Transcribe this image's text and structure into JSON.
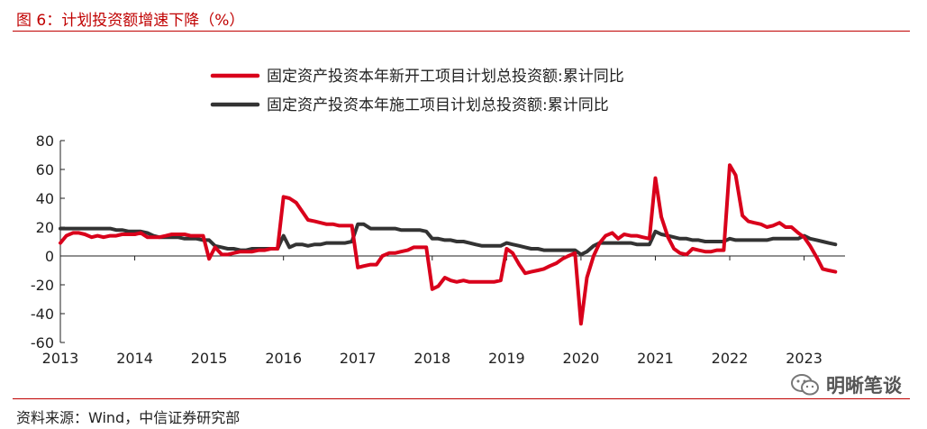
{
  "figure": {
    "title": "图 6：计划投资额增速下降（%）",
    "source": "资料来源：Wind，中信证券研究部",
    "watermark": "明晰笔谈",
    "watermark_icon": "wechat-icon"
  },
  "chart_data": {
    "type": "line",
    "title": "",
    "xlabel": "",
    "ylabel": "",
    "ylim": [
      -60,
      80
    ],
    "yticks": [
      80,
      60,
      40,
      20,
      0,
      -20,
      -40,
      -60
    ],
    "xticks": [
      "2013",
      "2014",
      "2015",
      "2016",
      "2017",
      "2018",
      "2019",
      "2020",
      "2021",
      "2022",
      "2023"
    ],
    "grid": false,
    "legend_position": "top",
    "colors": {
      "new_projects": "#d9001b",
      "under_construction": "#333333"
    },
    "series": [
      {
        "name": "固定资产投资本年新开工项目计划总投资额:累计同比",
        "color": "#d9001b",
        "x": [
          2013.0,
          2013.08,
          2013.17,
          2013.25,
          2013.33,
          2013.42,
          2013.5,
          2013.58,
          2013.67,
          2013.75,
          2013.83,
          2013.92,
          2014.0,
          2014.08,
          2014.17,
          2014.25,
          2014.33,
          2014.42,
          2014.5,
          2014.58,
          2014.67,
          2014.75,
          2014.83,
          2014.92,
          2015.0,
          2015.08,
          2015.17,
          2015.25,
          2015.33,
          2015.42,
          2015.5,
          2015.58,
          2015.67,
          2015.75,
          2015.83,
          2015.92,
          2016.0,
          2016.08,
          2016.17,
          2016.25,
          2016.33,
          2016.42,
          2016.5,
          2016.58,
          2016.67,
          2016.75,
          2016.83,
          2016.92,
          2017.0,
          2017.08,
          2017.17,
          2017.25,
          2017.33,
          2017.42,
          2017.5,
          2017.58,
          2017.67,
          2017.75,
          2017.83,
          2017.92,
          2018.0,
          2018.08,
          2018.17,
          2018.25,
          2018.33,
          2018.42,
          2018.5,
          2018.58,
          2018.67,
          2018.75,
          2018.83,
          2018.92,
          2019.0,
          2019.08,
          2019.17,
          2019.25,
          2019.33,
          2019.42,
          2019.5,
          2019.58,
          2019.67,
          2019.75,
          2019.83,
          2019.92,
          2020.0,
          2020.08,
          2020.17,
          2020.25,
          2020.33,
          2020.42,
          2020.5,
          2020.58,
          2020.67,
          2020.75,
          2020.83,
          2020.92,
          2021.0,
          2021.08,
          2021.17,
          2021.25,
          2021.33,
          2021.42,
          2021.5,
          2021.58,
          2021.67,
          2021.75,
          2021.83,
          2021.92,
          2022.0,
          2022.08,
          2022.17,
          2022.25,
          2022.33,
          2022.42,
          2022.5,
          2022.58,
          2022.67,
          2022.75,
          2022.83,
          2022.92,
          2023.0,
          2023.08,
          2023.17,
          2023.25,
          2023.33,
          2023.42
        ],
        "values": [
          9,
          14,
          16,
          16,
          15,
          13,
          14,
          13,
          14,
          14,
          15,
          15,
          15,
          16,
          13,
          13,
          13,
          14,
          15,
          15,
          15,
          14,
          14,
          14,
          -2,
          6,
          1,
          1,
          2,
          3,
          3,
          3,
          4,
          4,
          5,
          5,
          41,
          40,
          37,
          31,
          25,
          24,
          23,
          22,
          22,
          21,
          21,
          21,
          -8,
          -7,
          -6,
          -6,
          0,
          2,
          2,
          3,
          4,
          6,
          6,
          6,
          -23,
          -21,
          -15,
          -17,
          -18,
          -17,
          -18,
          -18,
          -18,
          -18,
          -18,
          -17,
          5,
          2,
          -6,
          -12,
          -11,
          -10,
          -9,
          -7,
          -5,
          -2,
          0,
          2,
          -47,
          -15,
          0,
          9,
          14,
          16,
          12,
          15,
          14,
          14,
          13,
          12,
          54,
          27,
          13,
          5,
          2,
          1,
          5,
          4,
          3,
          3,
          4,
          4,
          63,
          56,
          28,
          24,
          23,
          22,
          20,
          21,
          23,
          20,
          20,
          16,
          13,
          7,
          -1,
          -9,
          -10,
          -11
        ]
      },
      {
        "name": "固定资产投资本年施工项目计划总投资额:累计同比",
        "color": "#333333",
        "x": [
          2013.0,
          2013.08,
          2013.17,
          2013.25,
          2013.33,
          2013.42,
          2013.5,
          2013.58,
          2013.67,
          2013.75,
          2013.83,
          2013.92,
          2014.0,
          2014.08,
          2014.17,
          2014.25,
          2014.33,
          2014.42,
          2014.5,
          2014.58,
          2014.67,
          2014.75,
          2014.83,
          2014.92,
          2015.0,
          2015.08,
          2015.17,
          2015.25,
          2015.33,
          2015.42,
          2015.5,
          2015.58,
          2015.67,
          2015.75,
          2015.83,
          2015.92,
          2016.0,
          2016.08,
          2016.17,
          2016.25,
          2016.33,
          2016.42,
          2016.5,
          2016.58,
          2016.67,
          2016.75,
          2016.83,
          2016.92,
          2017.0,
          2017.08,
          2017.17,
          2017.25,
          2017.33,
          2017.42,
          2017.5,
          2017.58,
          2017.67,
          2017.75,
          2017.83,
          2017.92,
          2018.0,
          2018.08,
          2018.17,
          2018.25,
          2018.33,
          2018.42,
          2018.5,
          2018.58,
          2018.67,
          2018.75,
          2018.83,
          2018.92,
          2019.0,
          2019.08,
          2019.17,
          2019.25,
          2019.33,
          2019.42,
          2019.5,
          2019.58,
          2019.67,
          2019.75,
          2019.83,
          2019.92,
          2020.0,
          2020.08,
          2020.17,
          2020.25,
          2020.33,
          2020.42,
          2020.5,
          2020.58,
          2020.67,
          2020.75,
          2020.83,
          2020.92,
          2021.0,
          2021.08,
          2021.17,
          2021.25,
          2021.33,
          2021.42,
          2021.5,
          2021.58,
          2021.67,
          2021.75,
          2021.83,
          2021.92,
          2022.0,
          2022.08,
          2022.17,
          2022.25,
          2022.33,
          2022.42,
          2022.5,
          2022.58,
          2022.67,
          2022.75,
          2022.83,
          2022.92,
          2023.0,
          2023.08,
          2023.17,
          2023.25,
          2023.33,
          2023.42
        ],
        "values": [
          19,
          19,
          19,
          19,
          19,
          19,
          19,
          19,
          19,
          18,
          18,
          17,
          17,
          17,
          16,
          14,
          13,
          13,
          13,
          13,
          12,
          12,
          12,
          11,
          11,
          7,
          6,
          5,
          5,
          4,
          4,
          5,
          5,
          5,
          5,
          5,
          14,
          6,
          8,
          8,
          7,
          8,
          8,
          9,
          9,
          9,
          9,
          10,
          22,
          22,
          19,
          19,
          19,
          19,
          19,
          18,
          18,
          18,
          18,
          17,
          12,
          12,
          11,
          11,
          10,
          10,
          9,
          8,
          7,
          7,
          7,
          7,
          9,
          8,
          7,
          6,
          5,
          5,
          4,
          4,
          4,
          4,
          4,
          4,
          1,
          3,
          7,
          9,
          9,
          9,
          9,
          9,
          9,
          8,
          8,
          8,
          17,
          15,
          14,
          13,
          12,
          12,
          11,
          11,
          10,
          10,
          10,
          10,
          12,
          11,
          11,
          11,
          11,
          11,
          11,
          12,
          12,
          12,
          12,
          12,
          14,
          12,
          11,
          10,
          9,
          8
        ]
      }
    ]
  }
}
